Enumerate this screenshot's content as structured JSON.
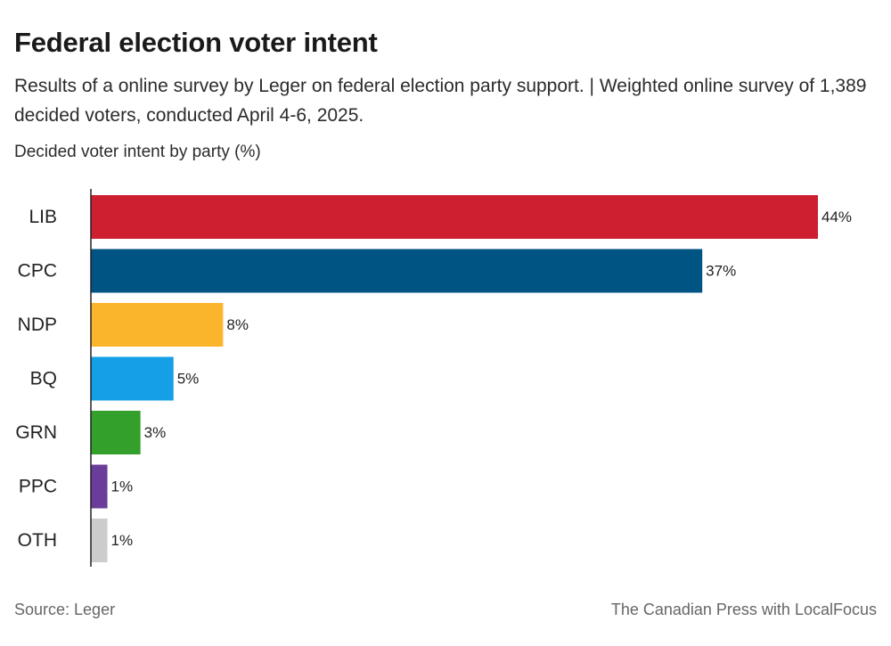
{
  "title": "Federal election voter intent",
  "subtitle": "Results of a online survey by Leger on federal election party support. | Weighted online survey of 1,389 decided voters, conducted April 4-6, 2025.",
  "footer": {
    "source": "Source:  Leger",
    "credit": "The Canadian Press with LocalFocus"
  },
  "chart_data": {
    "type": "bar",
    "orientation": "horizontal",
    "title": "Federal election voter intent",
    "ylabel": "Decided voter intent by party (%)",
    "xlabel": "",
    "xlim": [
      0,
      44
    ],
    "grid": false,
    "categories": [
      "LIB",
      "CPC",
      "NDP",
      "BQ",
      "GRN",
      "PPC",
      "OTH"
    ],
    "values": [
      44,
      37,
      8,
      5,
      3,
      1,
      1
    ],
    "data_labels": [
      "44%",
      "37%",
      "8%",
      "5%",
      "3%",
      "1%",
      "1%"
    ],
    "colors": [
      "#cd1f2f",
      "#005484",
      "#fbb52d",
      "#149fe6",
      "#33a02c",
      "#6a3d9a",
      "#cccccc"
    ]
  }
}
